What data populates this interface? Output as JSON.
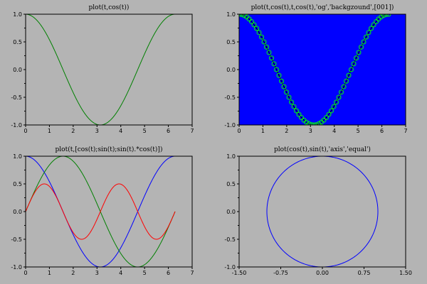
{
  "figure": {
    "background": "#b4b4b4"
  },
  "chart_data": [
    {
      "type": "line",
      "title": "plot(t,cos(t))",
      "xlabel": "",
      "ylabel": "",
      "xlim": [
        0,
        7
      ],
      "ylim": [
        -1,
        1
      ],
      "xticks": [
        "0",
        "1",
        "2",
        "3",
        "4",
        "5",
        "6",
        "7"
      ],
      "yticks": [
        "-1.0",
        "-0.5",
        "0.0",
        "0.5",
        "1.0"
      ],
      "axes_bg": "#b4b4b4",
      "grid": false,
      "series": [
        {
          "style": "line",
          "color": "#008000",
          "x_range": [
            0,
            6.2832
          ],
          "y_expr": "cos(t)"
        }
      ]
    },
    {
      "type": "scatter",
      "title": "plot(t,cos(t),t,cos(t),'og','backgzound',[001])",
      "xlabel": "",
      "ylabel": "",
      "xlim": [
        0,
        7
      ],
      "ylim": [
        -1,
        1
      ],
      "xticks": [
        "0",
        "1",
        "2",
        "3",
        "4",
        "5",
        "6",
        "7"
      ],
      "yticks": [
        "-1.0",
        "-0.5",
        "0.0",
        "0.5",
        "1.0"
      ],
      "axes_bg": "#0000ff",
      "grid": false,
      "series": [
        {
          "style": "line",
          "color": "#000000",
          "x_range": [
            0,
            6.2832
          ],
          "y_expr": "cos(t)"
        },
        {
          "style": "markers",
          "marker": "circle",
          "color": "#00ff00",
          "x_range": [
            0,
            6.2832
          ],
          "y_expr": "cos(t)"
        }
      ]
    },
    {
      "type": "line",
      "title": "plot(t,[cos(t);sin(t);sin(t).*cos(t)])",
      "xlabel": "",
      "ylabel": "",
      "xlim": [
        0,
        7
      ],
      "ylim": [
        -1,
        1
      ],
      "xticks": [
        "0",
        "1",
        "2",
        "3",
        "4",
        "5",
        "6",
        "7"
      ],
      "yticks": [
        "-1.0",
        "-0.5",
        "0.0",
        "0.5",
        "1.0"
      ],
      "axes_bg": "#b4b4b4",
      "grid": false,
      "series": [
        {
          "style": "line",
          "color": "#0000ff",
          "x_range": [
            0,
            6.2832
          ],
          "y_expr": "cos(t)"
        },
        {
          "style": "line",
          "color": "#008000",
          "x_range": [
            0,
            6.2832
          ],
          "y_expr": "sin(t)"
        },
        {
          "style": "line",
          "color": "#ff0000",
          "x_range": [
            0,
            6.2832
          ],
          "y_expr": "sin(t)*cos(t)"
        }
      ]
    },
    {
      "type": "line",
      "title": "plot(cos(t),sin(t),'axis','equal')",
      "xlabel": "",
      "ylabel": "",
      "xlim": [
        -1.5,
        1.5
      ],
      "ylim": [
        -1,
        1
      ],
      "xticks": [
        "-1.50",
        "-0.75",
        "0.00",
        "0.75",
        "1.50"
      ],
      "yticks": [
        "-1.0",
        "-0.5",
        "0.0",
        "0.5",
        "1.0"
      ],
      "axes_bg": "#b4b4b4",
      "grid": false,
      "series": [
        {
          "style": "line",
          "color": "#0000ff",
          "t_range": [
            0,
            6.2832
          ],
          "x_expr": "cos(t)",
          "y_expr": "sin(t)"
        }
      ]
    }
  ]
}
